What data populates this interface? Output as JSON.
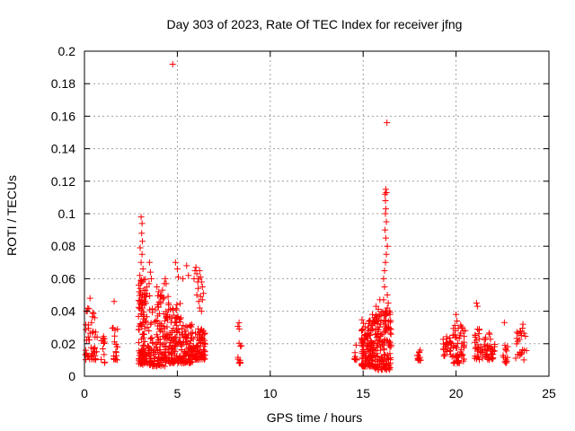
{
  "chart_data": {
    "type": "scatter",
    "title": "Day 303 of 2023, Rate Of TEC Index for receiver jfng",
    "xlabel": "GPS time / hours",
    "ylabel": "ROTI / TECUs",
    "xlim": [
      0,
      25
    ],
    "ylim": [
      0,
      0.2
    ],
    "x_ticks": [
      0,
      5,
      10,
      15,
      20,
      25
    ],
    "y_ticks": [
      0,
      0.02,
      0.04,
      0.06,
      0.08,
      0.1,
      0.12,
      0.14,
      0.16,
      0.18,
      0.2
    ],
    "x_tick_labels": [
      "0",
      "5",
      "10",
      "15",
      "20",
      "25"
    ],
    "y_tick_labels": [
      "0",
      "0.02",
      "0.04",
      "0.06",
      "0.08",
      "0.1",
      "0.12",
      "0.14",
      "0.16",
      "0.18",
      "0.2"
    ],
    "grid": true,
    "marker": "+",
    "marker_color": "#ff0000",
    "clusters": [
      {
        "x_start": 0.05,
        "x_end": 0.7,
        "y_min": 0.01,
        "y_max": 0.042,
        "count": 45
      },
      {
        "x_start": 0.9,
        "x_end": 1.1,
        "y_min": 0.008,
        "y_max": 0.025,
        "count": 12
      },
      {
        "x_start": 1.5,
        "x_end": 1.85,
        "y_min": 0.01,
        "y_max": 0.03,
        "count": 18
      },
      {
        "x_start": 2.9,
        "x_end": 3.4,
        "y_min": 0.007,
        "y_max": 0.06,
        "count": 110
      },
      {
        "x_start": 3.4,
        "x_end": 4.4,
        "y_min": 0.006,
        "y_max": 0.05,
        "count": 130
      },
      {
        "x_start": 4.4,
        "x_end": 5.2,
        "y_min": 0.008,
        "y_max": 0.045,
        "count": 110
      },
      {
        "x_start": 5.2,
        "x_end": 5.9,
        "y_min": 0.008,
        "y_max": 0.032,
        "count": 90
      },
      {
        "x_start": 5.9,
        "x_end": 6.5,
        "y_min": 0.01,
        "y_max": 0.03,
        "count": 75
      },
      {
        "x_start": 8.25,
        "x_end": 8.45,
        "y_min": 0.008,
        "y_max": 0.033,
        "count": 14
      },
      {
        "x_start": 14.5,
        "x_end": 14.65,
        "y_min": 0.01,
        "y_max": 0.02,
        "count": 8
      },
      {
        "x_start": 14.9,
        "x_end": 15.6,
        "y_min": 0.006,
        "y_max": 0.035,
        "count": 130
      },
      {
        "x_start": 15.6,
        "x_end": 16.5,
        "y_min": 0.004,
        "y_max": 0.042,
        "count": 160
      },
      {
        "x_start": 17.9,
        "x_end": 18.1,
        "y_min": 0.008,
        "y_max": 0.023,
        "count": 12
      },
      {
        "x_start": 19.3,
        "x_end": 19.8,
        "y_min": 0.012,
        "y_max": 0.025,
        "count": 30
      },
      {
        "x_start": 19.8,
        "x_end": 20.5,
        "y_min": 0.008,
        "y_max": 0.033,
        "count": 55
      },
      {
        "x_start": 21.0,
        "x_end": 21.3,
        "y_min": 0.01,
        "y_max": 0.03,
        "count": 25
      },
      {
        "x_start": 21.3,
        "x_end": 22.1,
        "y_min": 0.01,
        "y_max": 0.027,
        "count": 45
      },
      {
        "x_start": 22.5,
        "x_end": 22.8,
        "y_min": 0.008,
        "y_max": 0.022,
        "count": 14
      },
      {
        "x_start": 23.2,
        "x_end": 23.8,
        "y_min": 0.01,
        "y_max": 0.031,
        "count": 24
      }
    ],
    "points": [
      [
        0.3,
        0.048
      ],
      [
        0.55,
        0.036
      ],
      [
        0.15,
        0.04
      ],
      [
        1.6,
        0.046
      ],
      [
        3.05,
        0.098
      ],
      [
        3.1,
        0.094
      ],
      [
        3.08,
        0.088
      ],
      [
        3.12,
        0.083
      ],
      [
        3.0,
        0.079
      ],
      [
        3.1,
        0.075
      ],
      [
        3.05,
        0.07
      ],
      [
        3.15,
        0.066
      ],
      [
        2.98,
        0.062
      ],
      [
        3.1,
        0.058
      ],
      [
        3.0,
        0.054
      ],
      [
        3.12,
        0.05
      ],
      [
        3.5,
        0.07
      ],
      [
        3.55,
        0.064
      ],
      [
        3.6,
        0.06
      ],
      [
        3.48,
        0.057
      ],
      [
        3.9,
        0.055
      ],
      [
        4.0,
        0.052
      ],
      [
        4.1,
        0.05
      ],
      [
        4.2,
        0.053
      ],
      [
        4.3,
        0.057
      ],
      [
        4.35,
        0.06
      ],
      [
        4.4,
        0.057
      ],
      [
        4.5,
        0.049
      ],
      [
        4.75,
        0.192
      ],
      [
        4.9,
        0.07
      ],
      [
        5.0,
        0.066
      ],
      [
        5.05,
        0.061
      ],
      [
        5.3,
        0.06
      ],
      [
        5.5,
        0.068
      ],
      [
        5.6,
        0.062
      ],
      [
        5.9,
        0.06
      ],
      [
        5.95,
        0.065
      ],
      [
        6.0,
        0.067
      ],
      [
        6.05,
        0.063
      ],
      [
        6.1,
        0.058
      ],
      [
        6.12,
        0.054
      ],
      [
        6.15,
        0.06
      ],
      [
        6.2,
        0.065
      ],
      [
        6.25,
        0.061
      ],
      [
        6.3,
        0.058
      ],
      [
        6.35,
        0.055
      ],
      [
        6.4,
        0.051
      ],
      [
        6.35,
        0.047
      ],
      [
        6.25,
        0.049
      ],
      [
        6.15,
        0.046
      ],
      [
        6.05,
        0.05
      ],
      [
        6.2,
        0.042
      ],
      [
        6.3,
        0.04
      ],
      [
        15.5,
        0.038
      ],
      [
        15.7,
        0.043
      ],
      [
        15.9,
        0.047
      ],
      [
        16.1,
        0.06
      ],
      [
        16.15,
        0.065
      ],
      [
        16.2,
        0.07
      ],
      [
        16.25,
        0.075
      ],
      [
        16.3,
        0.08
      ],
      [
        16.22,
        0.085
      ],
      [
        16.18,
        0.09
      ],
      [
        16.25,
        0.095
      ],
      [
        16.2,
        0.1
      ],
      [
        16.22,
        0.103
      ],
      [
        16.2,
        0.108
      ],
      [
        16.18,
        0.112
      ],
      [
        16.22,
        0.115
      ],
      [
        16.25,
        0.113
      ],
      [
        16.28,
        0.156
      ],
      [
        16.3,
        0.05
      ],
      [
        16.35,
        0.045
      ],
      [
        16.15,
        0.055
      ],
      [
        16.3,
        0.042
      ],
      [
        16.1,
        0.047
      ],
      [
        20.0,
        0.038
      ],
      [
        20.05,
        0.034
      ],
      [
        21.1,
        0.045
      ],
      [
        21.15,
        0.043
      ],
      [
        22.6,
        0.033
      ],
      [
        23.6,
        0.032
      ]
    ]
  }
}
